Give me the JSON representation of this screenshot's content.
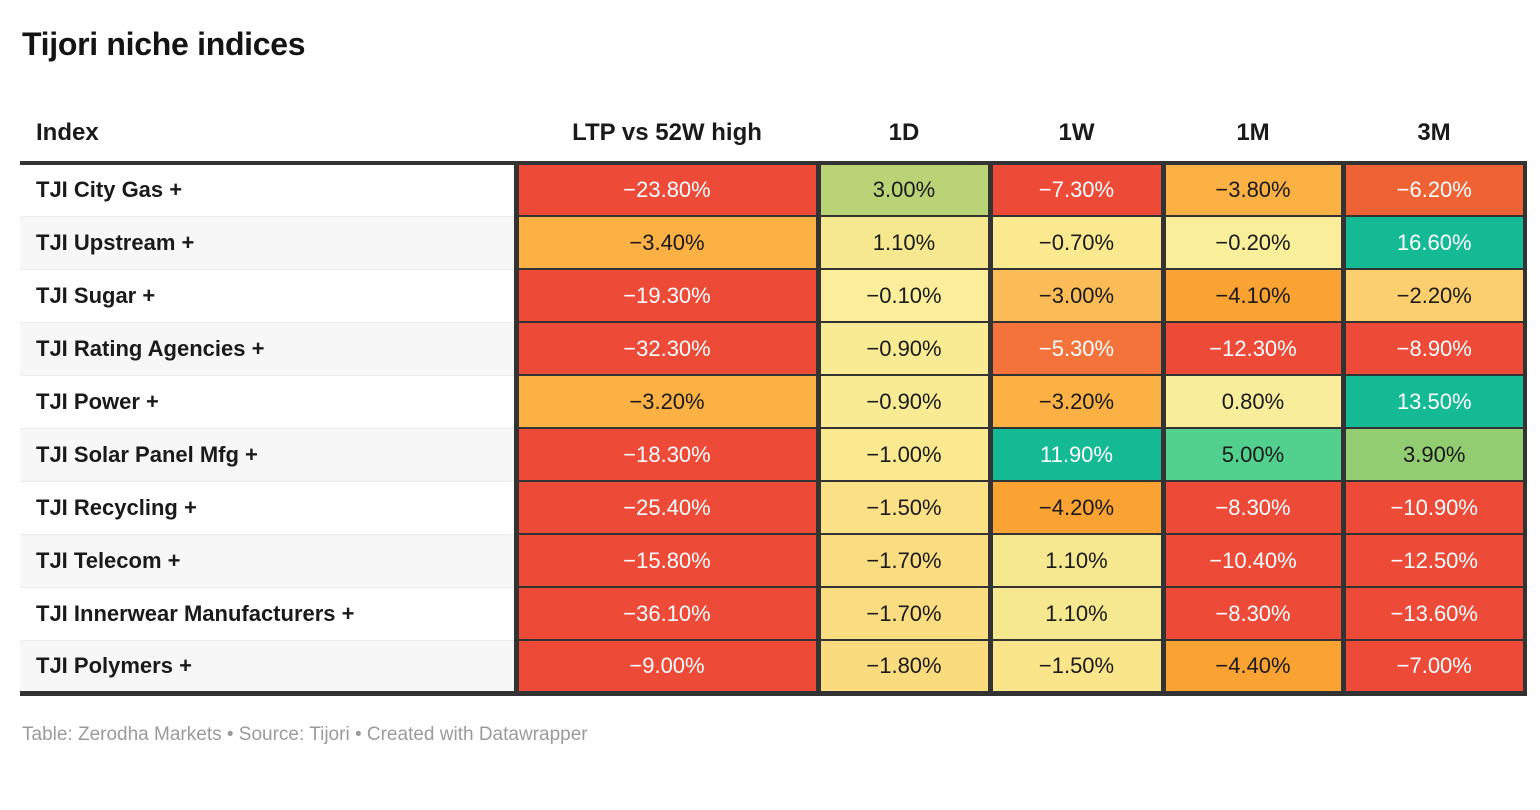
{
  "title": "Tijori niche indices",
  "footer": {
    "text": "Table: Zerodha Markets • Source: Tijori • Created with Datawrapper"
  },
  "columns": [
    "Index",
    "LTP vs 52W high",
    "1D",
    "1W",
    "1M",
    "3M"
  ],
  "palette": {
    "deep_red": "#ee4a38",
    "orange_red": "#ee6234",
    "light_red_orange": "#f3733b",
    "strong_orange": "#faa232",
    "orange": "#fcb144",
    "light_orange": "#fbbc57",
    "gold": "#fccf6e",
    "tan": "#fadd80",
    "pale_yellow": "#fae98f",
    "yellow_green": "#bad377",
    "green": "#92cd72",
    "spring_green": "#52d18e",
    "teal": "#14ba94",
    "dark_border": "#333333"
  },
  "rows": [
    {
      "index": "TJI City Gas +",
      "cells": [
        {
          "v": "−23.80%",
          "bg": "#ee4a38",
          "fg": "#ffffff"
        },
        {
          "v": "3.00%",
          "bg": "#bad377",
          "fg": "#1a1a1a"
        },
        {
          "v": "−7.30%",
          "bg": "#ee4a38",
          "fg": "#ffffff"
        },
        {
          "v": "−3.80%",
          "bg": "#fcb144",
          "fg": "#1a1a1a"
        },
        {
          "v": "−6.20%",
          "bg": "#ee6234",
          "fg": "#ffffff"
        }
      ]
    },
    {
      "index": "TJI Upstream +",
      "cells": [
        {
          "v": "−3.40%",
          "bg": "#fcb144",
          "fg": "#1a1a1a"
        },
        {
          "v": "1.10%",
          "bg": "#f6e88e",
          "fg": "#1a1a1a"
        },
        {
          "v": "−0.70%",
          "bg": "#fae98f",
          "fg": "#1a1a1a"
        },
        {
          "v": "−0.20%",
          "bg": "#f9ee9a",
          "fg": "#1a1a1a"
        },
        {
          "v": "16.60%",
          "bg": "#14ba94",
          "fg": "#ffffff"
        }
      ]
    },
    {
      "index": "TJI Sugar +",
      "cells": [
        {
          "v": "−19.30%",
          "bg": "#ee4a38",
          "fg": "#ffffff"
        },
        {
          "v": "−0.10%",
          "bg": "#faee9b",
          "fg": "#1a1a1a"
        },
        {
          "v": "−3.00%",
          "bg": "#fbbc57",
          "fg": "#1a1a1a"
        },
        {
          "v": "−4.10%",
          "bg": "#faa232",
          "fg": "#1a1a1a"
        },
        {
          "v": "−2.20%",
          "bg": "#fccf6e",
          "fg": "#1a1a1a"
        }
      ]
    },
    {
      "index": "TJI Rating Agencies +",
      "cells": [
        {
          "v": "−32.30%",
          "bg": "#ee4a38",
          "fg": "#ffffff"
        },
        {
          "v": "−0.90%",
          "bg": "#f9eb94",
          "fg": "#1a1a1a"
        },
        {
          "v": "−5.30%",
          "bg": "#f3733b",
          "fg": "#ffffff"
        },
        {
          "v": "−12.30%",
          "bg": "#ee4a38",
          "fg": "#ffffff"
        },
        {
          "v": "−8.90%",
          "bg": "#ee4a38",
          "fg": "#ffffff"
        }
      ]
    },
    {
      "index": "TJI Power +",
      "cells": [
        {
          "v": "−3.20%",
          "bg": "#fcb144",
          "fg": "#1a1a1a"
        },
        {
          "v": "−0.90%",
          "bg": "#f9eb94",
          "fg": "#1a1a1a"
        },
        {
          "v": "−3.20%",
          "bg": "#fcb144",
          "fg": "#1a1a1a"
        },
        {
          "v": "0.80%",
          "bg": "#f8ed9a",
          "fg": "#1a1a1a"
        },
        {
          "v": "13.50%",
          "bg": "#14ba94",
          "fg": "#ffffff"
        }
      ]
    },
    {
      "index": "TJI Solar Panel Mfg +",
      "cells": [
        {
          "v": "−18.30%",
          "bg": "#ee4a38",
          "fg": "#ffffff"
        },
        {
          "v": "−1.00%",
          "bg": "#fae98f",
          "fg": "#1a1a1a"
        },
        {
          "v": "11.90%",
          "bg": "#14ba94",
          "fg": "#ffffff"
        },
        {
          "v": "5.00%",
          "bg": "#52d18e",
          "fg": "#1a1a1a"
        },
        {
          "v": "3.90%",
          "bg": "#92cd72",
          "fg": "#1a1a1a"
        }
      ]
    },
    {
      "index": "TJI Recycling +",
      "cells": [
        {
          "v": "−25.40%",
          "bg": "#ee4a38",
          "fg": "#ffffff"
        },
        {
          "v": "−1.50%",
          "bg": "#fbe086",
          "fg": "#1a1a1a"
        },
        {
          "v": "−4.20%",
          "bg": "#faa232",
          "fg": "#1a1a1a"
        },
        {
          "v": "−8.30%",
          "bg": "#ee4a38",
          "fg": "#ffffff"
        },
        {
          "v": "−10.90%",
          "bg": "#ee4a38",
          "fg": "#ffffff"
        }
      ]
    },
    {
      "index": "TJI Telecom +",
      "cells": [
        {
          "v": "−15.80%",
          "bg": "#ee4a38",
          "fg": "#ffffff"
        },
        {
          "v": "−1.70%",
          "bg": "#fadd80",
          "fg": "#1a1a1a"
        },
        {
          "v": "1.10%",
          "bg": "#f6e88e",
          "fg": "#1a1a1a"
        },
        {
          "v": "−10.40%",
          "bg": "#ee4a38",
          "fg": "#ffffff"
        },
        {
          "v": "−12.50%",
          "bg": "#ee4a38",
          "fg": "#ffffff"
        }
      ]
    },
    {
      "index": "TJI Innerwear Manufacturers +",
      "cells": [
        {
          "v": "−36.10%",
          "bg": "#ee4a38",
          "fg": "#ffffff"
        },
        {
          "v": "−1.70%",
          "bg": "#fadd80",
          "fg": "#1a1a1a"
        },
        {
          "v": "1.10%",
          "bg": "#f6e88e",
          "fg": "#1a1a1a"
        },
        {
          "v": "−8.30%",
          "bg": "#ee4a38",
          "fg": "#ffffff"
        },
        {
          "v": "−13.60%",
          "bg": "#ee4a38",
          "fg": "#ffffff"
        }
      ]
    },
    {
      "index": "TJI Polymers +",
      "cells": [
        {
          "v": "−9.00%",
          "bg": "#ee4a38",
          "fg": "#ffffff"
        },
        {
          "v": "−1.80%",
          "bg": "#fadc7e",
          "fg": "#1a1a1a"
        },
        {
          "v": "−1.50%",
          "bg": "#fbe58a",
          "fg": "#1a1a1a"
        },
        {
          "v": "−4.40%",
          "bg": "#faa232",
          "fg": "#1a1a1a"
        },
        {
          "v": "−7.00%",
          "bg": "#ee4a38",
          "fg": "#ffffff"
        }
      ]
    }
  ],
  "chart_data": {
    "type": "table",
    "title": "Tijori niche indices",
    "columns": [
      "Index",
      "LTP vs 52W high",
      "1D",
      "1W",
      "1M",
      "3M"
    ],
    "rows": [
      [
        "TJI City Gas +",
        -23.8,
        3.0,
        -7.3,
        -3.8,
        -6.2
      ],
      [
        "TJI Upstream +",
        -3.4,
        1.1,
        -0.7,
        -0.2,
        16.6
      ],
      [
        "TJI Sugar +",
        -19.3,
        -0.1,
        -3.0,
        -4.1,
        -2.2
      ],
      [
        "TJI Rating Agencies +",
        -32.3,
        -0.9,
        -5.3,
        -12.3,
        -8.9
      ],
      [
        "TJI Power +",
        -3.2,
        -0.9,
        -3.2,
        0.8,
        13.5
      ],
      [
        "TJI Solar Panel Mfg +",
        -18.3,
        -1.0,
        11.9,
        5.0,
        3.9
      ],
      [
        "TJI Recycling +",
        -25.4,
        -1.5,
        -4.2,
        -8.3,
        -10.9
      ],
      [
        "TJI Telecom +",
        -15.8,
        -1.7,
        1.1,
        -10.4,
        -12.5
      ],
      [
        "TJI Innerwear Manufacturers +",
        -36.1,
        -1.7,
        1.1,
        -8.3,
        -13.6
      ],
      [
        "TJI Polymers +",
        -9.0,
        -1.8,
        -1.5,
        -4.4,
        -7.0
      ]
    ],
    "units": "percent",
    "layout_hints": {
      "heatmap": "red = strongly negative, orange/yellow = mildly negative, pale yellow = near zero, green/teal = positive",
      "legend": "none",
      "grid": "dark cell borders"
    }
  }
}
